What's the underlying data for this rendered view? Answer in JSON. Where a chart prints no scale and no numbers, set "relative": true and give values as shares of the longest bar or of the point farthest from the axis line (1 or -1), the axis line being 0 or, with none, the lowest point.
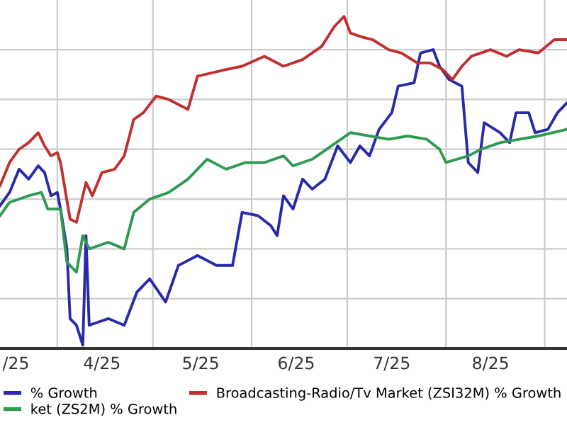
{
  "chart_data": {
    "type": "line",
    "relative": true,
    "grid": true,
    "legend": "bottom",
    "line_style": "solid",
    "xlim": [
      "2025-03-14",
      "2025-09-08"
    ],
    "xticks": [
      {
        "value": "2025-03-19",
        "label": "/25"
      },
      {
        "value": "2025-04-01",
        "label": null
      },
      {
        "value": "2025-04-15",
        "label": "4/25"
      },
      {
        "value": "2025-05-01",
        "label": null
      },
      {
        "value": "2025-05-16",
        "label": "5/25"
      },
      {
        "value": "2025-06-01",
        "label": null
      },
      {
        "value": "2025-06-15",
        "label": "6/25"
      },
      {
        "value": "2025-07-01",
        "label": null
      },
      {
        "value": "2025-07-15",
        "label": "7/25"
      },
      {
        "value": "2025-08-01",
        "label": null
      },
      {
        "value": "2025-08-15",
        "label": "8/25"
      },
      {
        "value": "2025-09-01",
        "label": null
      }
    ],
    "series": [
      {
        "name": "% Growth",
        "color": "#2a2aa8",
        "x": [
          "2025-03-14",
          "2025-03-17",
          "2025-03-20",
          "2025-03-23",
          "2025-03-26",
          "2025-03-28",
          "2025-03-30",
          "2025-04-01",
          "2025-04-02",
          "2025-04-04",
          "2025-04-05",
          "2025-04-07",
          "2025-04-09",
          "2025-04-10",
          "2025-04-11",
          "2025-04-14",
          "2025-04-17",
          "2025-04-22",
          "2025-04-26",
          "2025-04-30",
          "2025-05-05",
          "2025-05-09",
          "2025-05-15",
          "2025-05-21",
          "2025-05-26",
          "2025-05-29",
          "2025-06-03",
          "2025-06-07",
          "2025-06-09",
          "2025-06-11",
          "2025-06-14",
          "2025-06-17",
          "2025-06-20",
          "2025-06-24",
          "2025-06-28",
          "2025-07-02",
          "2025-07-05",
          "2025-07-08",
          "2025-07-11",
          "2025-07-15",
          "2025-07-17",
          "2025-07-22",
          "2025-07-24",
          "2025-07-28",
          "2025-07-30",
          "2025-08-02",
          "2025-08-06",
          "2025-08-08",
          "2025-08-11",
          "2025-08-13",
          "2025-08-18",
          "2025-08-21",
          "2025-08-23",
          "2025-08-27",
          "2025-08-29",
          "2025-09-02",
          "2025-09-05",
          "2025-09-08"
        ],
        "values": [
          0.43,
          0.47,
          0.54,
          0.51,
          0.55,
          0.53,
          0.46,
          0.47,
          0.42,
          0.3,
          0.09,
          0.07,
          0.01,
          0.34,
          0.07,
          0.08,
          0.09,
          0.07,
          0.17,
          0.21,
          0.14,
          0.25,
          0.28,
          0.25,
          0.25,
          0.41,
          0.4,
          0.37,
          0.34,
          0.46,
          0.42,
          0.51,
          0.48,
          0.51,
          0.61,
          0.56,
          0.61,
          0.58,
          0.66,
          0.71,
          0.79,
          0.8,
          0.89,
          0.9,
          0.85,
          0.81,
          0.79,
          0.56,
          0.53,
          0.68,
          0.65,
          0.62,
          0.71,
          0.71,
          0.65,
          0.66,
          0.71,
          0.74
        ]
      },
      {
        "name": "ket (ZS2M) % Growth",
        "color": "#2e9a52",
        "x": [
          "2025-03-14",
          "2025-03-17",
          "2025-03-23",
          "2025-03-27",
          "2025-03-29",
          "2025-04-02",
          "2025-04-04",
          "2025-04-07",
          "2025-04-09",
          "2025-04-11",
          "2025-04-17",
          "2025-04-22",
          "2025-04-25",
          "2025-04-30",
          "2025-05-06",
          "2025-05-12",
          "2025-05-18",
          "2025-05-24",
          "2025-05-30",
          "2025-06-05",
          "2025-06-11",
          "2025-06-14",
          "2025-06-20",
          "2025-06-26",
          "2025-07-02",
          "2025-07-08",
          "2025-07-14",
          "2025-07-20",
          "2025-07-26",
          "2025-07-30",
          "2025-08-01",
          "2025-08-08",
          "2025-08-12",
          "2025-08-18",
          "2025-08-24",
          "2025-08-30",
          "2025-09-08"
        ],
        "values": [
          0.4,
          0.44,
          0.46,
          0.47,
          0.42,
          0.42,
          0.26,
          0.23,
          0.34,
          0.3,
          0.32,
          0.3,
          0.41,
          0.45,
          0.47,
          0.51,
          0.57,
          0.54,
          0.56,
          0.56,
          0.58,
          0.55,
          0.57,
          0.61,
          0.65,
          0.64,
          0.63,
          0.64,
          0.63,
          0.6,
          0.56,
          0.58,
          0.6,
          0.62,
          0.63,
          0.64,
          0.66
        ]
      },
      {
        "name": "Broadcasting-Radio/Tv Market (ZSI32M) % Growth",
        "color": "#c0302f",
        "x": [
          "2025-03-14",
          "2025-03-17",
          "2025-03-20",
          "2025-03-23",
          "2025-03-26",
          "2025-03-28",
          "2025-03-30",
          "2025-04-01",
          "2025-04-02",
          "2025-04-05",
          "2025-04-07",
          "2025-04-10",
          "2025-04-12",
          "2025-04-15",
          "2025-04-19",
          "2025-04-22",
          "2025-04-25",
          "2025-04-28",
          "2025-05-02",
          "2025-05-06",
          "2025-05-12",
          "2025-05-15",
          "2025-05-24",
          "2025-05-29",
          "2025-06-05",
          "2025-06-11",
          "2025-06-17",
          "2025-06-23",
          "2025-06-27",
          "2025-06-30",
          "2025-07-02",
          "2025-07-05",
          "2025-07-09",
          "2025-07-14",
          "2025-07-18",
          "2025-07-23",
          "2025-07-27",
          "2025-07-31",
          "2025-08-03",
          "2025-08-06",
          "2025-08-09",
          "2025-08-15",
          "2025-08-20",
          "2025-08-24",
          "2025-08-30",
          "2025-09-04",
          "2025-09-08"
        ],
        "values": [
          0.49,
          0.56,
          0.6,
          0.62,
          0.65,
          0.61,
          0.58,
          0.59,
          0.56,
          0.39,
          0.38,
          0.5,
          0.46,
          0.53,
          0.54,
          0.58,
          0.69,
          0.71,
          0.76,
          0.75,
          0.72,
          0.82,
          0.84,
          0.85,
          0.88,
          0.85,
          0.87,
          0.91,
          0.97,
          1,
          0.95,
          0.94,
          0.93,
          0.9,
          0.89,
          0.86,
          0.86,
          0.84,
          0.81,
          0.85,
          0.88,
          0.9,
          0.88,
          0.9,
          0.89,
          0.93,
          0.93
        ]
      }
    ]
  }
}
